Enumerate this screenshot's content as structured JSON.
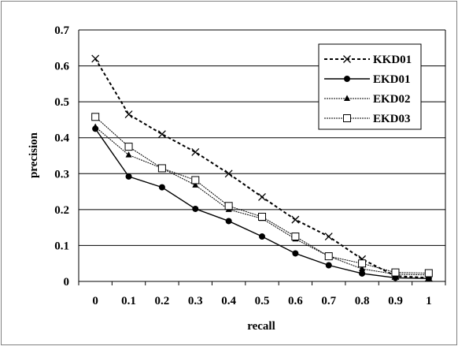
{
  "chart_data": {
    "type": "line",
    "title": "",
    "xlabel": "recall",
    "ylabel": "precision",
    "categories": [
      "0",
      "0.1",
      "0.2",
      "0.3",
      "0.4",
      "0.5",
      "0.6",
      "0.7",
      "0.8",
      "0.9",
      "1"
    ],
    "ylim": [
      0,
      0.7
    ],
    "yticks": [
      "0",
      "0.1",
      "0.2",
      "0.3",
      "0.4",
      "0.5",
      "0.6",
      "0.7"
    ],
    "grid": "horizontal",
    "legend": "top-right",
    "series": [
      {
        "name": "KKD01",
        "marker": "x",
        "line": "dashed",
        "values": [
          0.62,
          0.465,
          0.41,
          0.36,
          0.3,
          0.235,
          0.172,
          0.125,
          0.062,
          0.015,
          0.01
        ]
      },
      {
        "name": "EKD01",
        "marker": "circle",
        "line": "solid",
        "values": [
          0.425,
          0.292,
          0.262,
          0.202,
          0.168,
          0.125,
          0.078,
          0.045,
          0.022,
          0.01,
          0.008
        ]
      },
      {
        "name": "EKD02",
        "marker": "triangle",
        "line": "thin-dotted",
        "values": [
          0.43,
          0.352,
          0.315,
          0.268,
          0.2,
          0.175,
          0.118,
          0.07,
          0.035,
          0.02,
          0.018
        ]
      },
      {
        "name": "EKD03",
        "marker": "square",
        "line": "thin-dotted",
        "values": [
          0.458,
          0.375,
          0.315,
          0.282,
          0.21,
          0.18,
          0.125,
          0.07,
          0.05,
          0.025,
          0.023
        ]
      }
    ]
  }
}
